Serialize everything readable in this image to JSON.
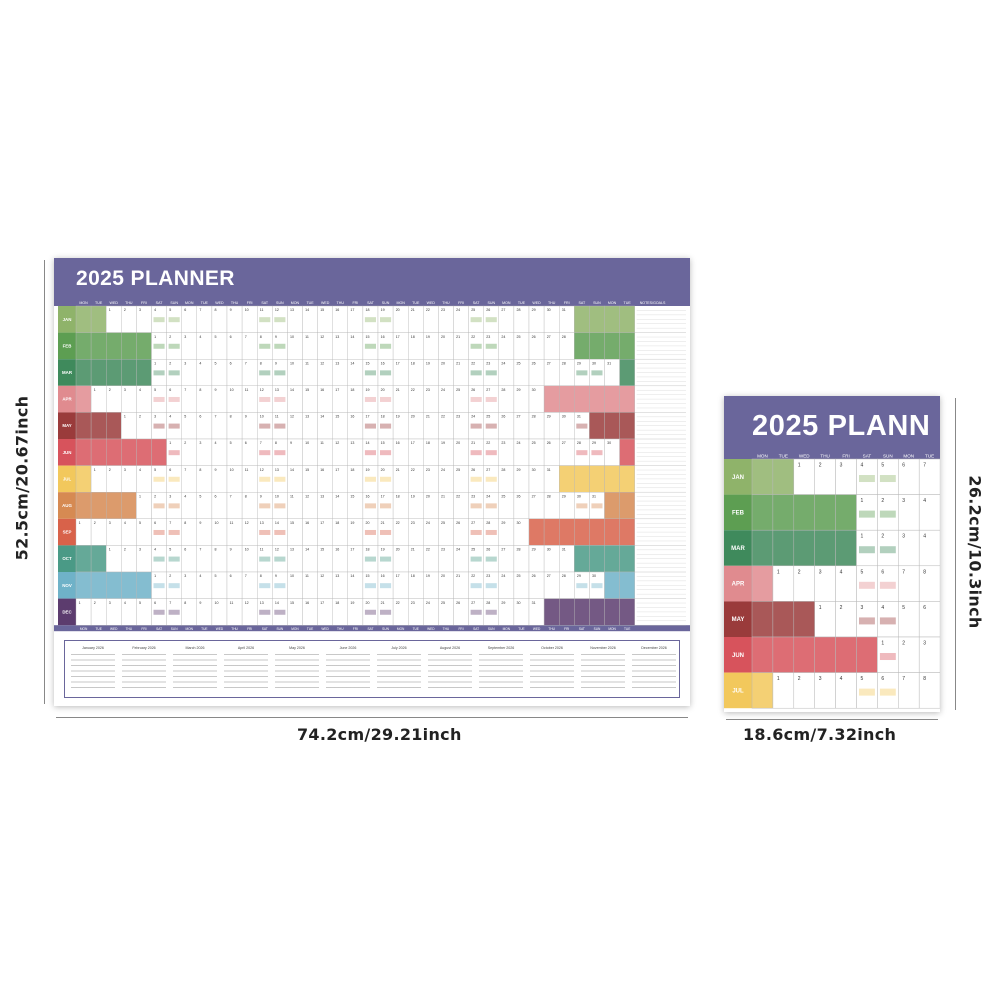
{
  "large_poster": {
    "title": "2025 PLANNER",
    "day_headers": [
      "MON",
      "TUE",
      "WED",
      "THU",
      "FRI",
      "SAT",
      "SUN",
      "MON",
      "TUE",
      "WED",
      "THU",
      "FRI",
      "SAT",
      "SUN",
      "MON",
      "TUE",
      "WED",
      "THU",
      "FRI",
      "SAT",
      "SUN",
      "MON",
      "TUE",
      "WED",
      "THU",
      "FRI",
      "SAT",
      "SUN",
      "MON",
      "TUE",
      "WED",
      "THU",
      "FRI",
      "SAT",
      "SUN",
      "MON",
      "TUE"
    ],
    "notes_header": "NOTES/GOALS",
    "months": [
      {
        "label": "JAN",
        "color": "#8fb36a",
        "start": 3,
        "days": 31
      },
      {
        "label": "FEB",
        "color": "#5d9e52",
        "start": 6,
        "days": 28
      },
      {
        "label": "MAR",
        "color": "#3f8a5c",
        "start": 6,
        "days": 31
      },
      {
        "label": "APR",
        "color": "#e08b8f",
        "start": 2,
        "days": 30
      },
      {
        "label": "MAY",
        "color": "#9a3b3b",
        "start": 4,
        "days": 31
      },
      {
        "label": "JUN",
        "color": "#d7535c",
        "start": 7,
        "days": 30
      },
      {
        "label": "JUL",
        "color": "#f2c85c",
        "start": 2,
        "days": 31
      },
      {
        "label": "AUG",
        "color": "#d68a52",
        "start": 5,
        "days": 31
      },
      {
        "label": "SEP",
        "color": "#d8624a",
        "start": 1,
        "days": 30
      },
      {
        "label": "OCT",
        "color": "#4a9a86",
        "start": 3,
        "days": 31
      },
      {
        "label": "NOV",
        "color": "#6fb2c8",
        "start": 6,
        "days": 30
      },
      {
        "label": "DEC",
        "color": "#5c3c6e",
        "start": 1,
        "days": 31
      }
    ],
    "mini_calendar_titles": [
      "January 2026",
      "February 2026",
      "March 2026",
      "April 2026",
      "May 2026",
      "June 2026",
      "July 2026",
      "August 2026",
      "September 2026",
      "October 2026",
      "November 2026",
      "December 2026"
    ]
  },
  "small_poster": {
    "title": "2025 PLANN",
    "day_headers": [
      "MON",
      "TUE",
      "WED",
      "THU",
      "FRI",
      "SAT",
      "SUN",
      "MON",
      "TUE"
    ],
    "months": [
      {
        "label": "JAN",
        "color": "#8fb36a",
        "start": 3
      },
      {
        "label": "FEB",
        "color": "#5d9e52",
        "start": 6
      },
      {
        "label": "MAR",
        "color": "#3f8a5c",
        "start": 6
      },
      {
        "label": "APR",
        "color": "#e08b8f",
        "start": 2
      },
      {
        "label": "MAY",
        "color": "#9a3b3b",
        "start": 4
      },
      {
        "label": "JUN",
        "color": "#d7535c",
        "start": 7
      },
      {
        "label": "JUL",
        "color": "#f2c85c",
        "start": 2
      }
    ]
  },
  "dimensions": {
    "large_width": "74.2cm/29.21inch",
    "large_height": "52.5cm/20.67inch",
    "small_width": "18.6cm/7.32inch",
    "small_height": "26.2cm/10.3inch"
  },
  "colors": {
    "header": "#6a669b",
    "grid_line": "#b8b8b8"
  }
}
